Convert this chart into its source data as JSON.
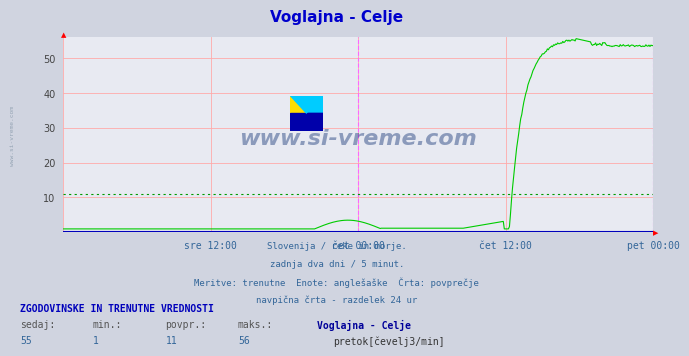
{
  "title": "Voglajna - Celje",
  "title_color": "#0000cc",
  "bg_color": "#d0d4e0",
  "plot_bg_color": "#e8eaf2",
  "line_color": "#00cc00",
  "line_color_blue": "#0000bb",
  "avg_line_color": "#009900",
  "avg_line_value": 11,
  "ymin": 0,
  "ymax": 56,
  "yticks": [
    10,
    20,
    30,
    40,
    50
  ],
  "grid_color": "#ffaaaa",
  "vline_color": "#ff66ff",
  "xtick_labels": [
    "sre 12:00",
    "čet 00:00",
    "čet 12:00",
    "pet 00:00"
  ],
  "xtick_color": "#336699",
  "subtitle_lines": [
    "Slovenija / reke in morje.",
    "zadnja dva dni / 5 minut.",
    "Meritve: trenutne  Enote: anglešaške  Črta: povprečje",
    "navpična črta - razdelek 24 ur"
  ],
  "footer_title": "ZGODOVINSKE IN TRENUTNE VREDNOSTI",
  "footer_labels": [
    "sedaj:",
    "min.:",
    "povpr.:",
    "maks.:"
  ],
  "footer_values": [
    "55",
    "1",
    "11",
    "56"
  ],
  "footer_station": "Voglajna - Celje",
  "footer_unit": "pretok[čevelj3/min]",
  "watermark": "www.si-vreme.com",
  "watermark_color": "#1a3a7a",
  "side_watermark": "www.si-vreme.com",
  "side_watermark_color": "#8899aa"
}
